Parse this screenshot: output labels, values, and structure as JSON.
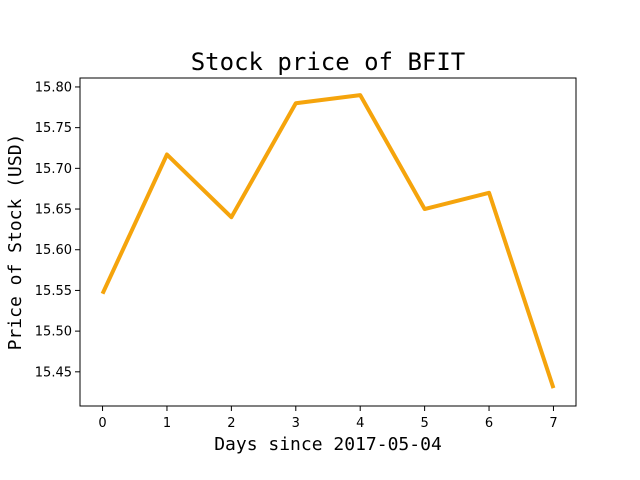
{
  "chart_data": {
    "type": "line",
    "title": "Stock price of BFIT",
    "xlabel": "Days since 2017-05-04",
    "ylabel": "Price of Stock (USD)",
    "x": [
      0,
      1,
      2,
      3,
      4,
      5,
      6,
      7
    ],
    "series": [
      {
        "values": [
          15.546,
          15.717,
          15.64,
          15.78,
          15.79,
          15.65,
          15.67,
          15.43
        ],
        "color": "#f5a40c"
      }
    ],
    "xlim": [
      -0.35,
      7.35
    ],
    "ylim": [
      15.408,
      15.811
    ],
    "xticks": [
      "0",
      "1",
      "2",
      "3",
      "4",
      "5",
      "6",
      "7"
    ],
    "yticks": [
      "15.45",
      "15.50",
      "15.55",
      "15.60",
      "15.65",
      "15.70",
      "15.75",
      "15.80"
    ],
    "grid": false,
    "legend": "none"
  }
}
